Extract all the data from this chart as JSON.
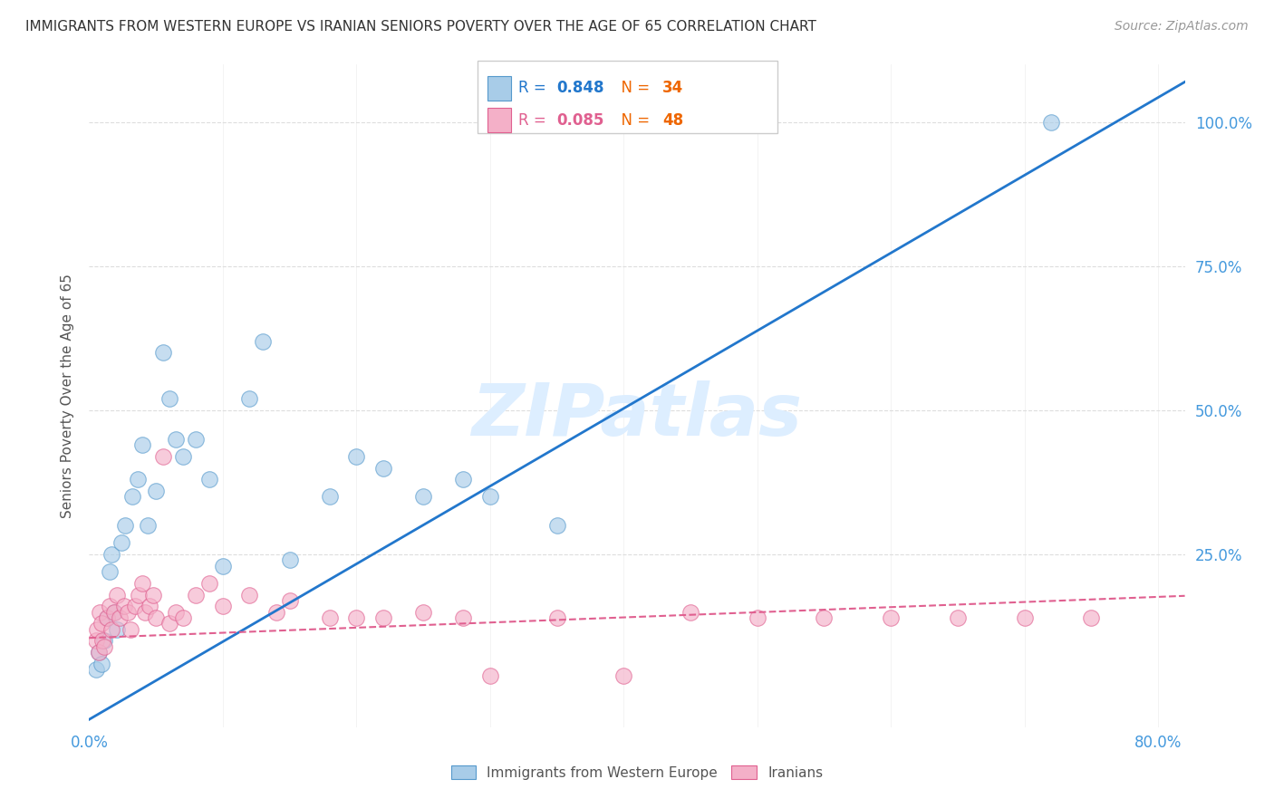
{
  "title": "IMMIGRANTS FROM WESTERN EUROPE VS IRANIAN SENIORS POVERTY OVER THE AGE OF 65 CORRELATION CHART",
  "source": "Source: ZipAtlas.com",
  "ylabel": "Seniors Poverty Over the Age of 65",
  "xlim": [
    0.0,
    0.82
  ],
  "ylim": [
    -0.05,
    1.1
  ],
  "yticks": [
    0.0,
    0.25,
    0.5,
    0.75,
    1.0
  ],
  "right_ytick_labels": [
    "100.0%",
    "75.0%",
    "50.0%",
    "25.0%",
    ""
  ],
  "xtick_vals": [
    0.0,
    0.1,
    0.2,
    0.3,
    0.4,
    0.5,
    0.6,
    0.7,
    0.8
  ],
  "xtick_labels": [
    "0.0%",
    "",
    "",
    "",
    "",
    "",
    "",
    "",
    "80.0%"
  ],
  "blue_R": "0.848",
  "blue_N": "34",
  "pink_R": "0.085",
  "pink_N": "48",
  "blue_scatter_x": [
    0.005,
    0.007,
    0.009,
    0.011,
    0.013,
    0.015,
    0.017,
    0.019,
    0.021,
    0.024,
    0.027,
    0.032,
    0.036,
    0.04,
    0.044,
    0.05,
    0.055,
    0.06,
    0.065,
    0.07,
    0.08,
    0.09,
    0.1,
    0.12,
    0.13,
    0.15,
    0.18,
    0.2,
    0.22,
    0.25,
    0.28,
    0.3,
    0.35,
    0.72
  ],
  "blue_scatter_y": [
    0.05,
    0.08,
    0.06,
    0.1,
    0.14,
    0.22,
    0.25,
    0.15,
    0.12,
    0.27,
    0.3,
    0.35,
    0.38,
    0.44,
    0.3,
    0.36,
    0.6,
    0.52,
    0.45,
    0.42,
    0.45,
    0.38,
    0.23,
    0.52,
    0.62,
    0.24,
    0.35,
    0.42,
    0.4,
    0.35,
    0.38,
    0.35,
    0.3,
    1.0
  ],
  "pink_scatter_x": [
    0.005,
    0.006,
    0.007,
    0.008,
    0.009,
    0.01,
    0.011,
    0.013,
    0.015,
    0.017,
    0.019,
    0.021,
    0.023,
    0.026,
    0.029,
    0.031,
    0.034,
    0.037,
    0.04,
    0.042,
    0.045,
    0.048,
    0.05,
    0.055,
    0.06,
    0.065,
    0.07,
    0.08,
    0.09,
    0.1,
    0.12,
    0.14,
    0.15,
    0.18,
    0.2,
    0.22,
    0.25,
    0.28,
    0.3,
    0.35,
    0.4,
    0.45,
    0.5,
    0.55,
    0.6,
    0.65,
    0.7,
    0.75
  ],
  "pink_scatter_y": [
    0.1,
    0.12,
    0.08,
    0.15,
    0.13,
    0.1,
    0.09,
    0.14,
    0.16,
    0.12,
    0.15,
    0.18,
    0.14,
    0.16,
    0.15,
    0.12,
    0.16,
    0.18,
    0.2,
    0.15,
    0.16,
    0.18,
    0.14,
    0.42,
    0.13,
    0.15,
    0.14,
    0.18,
    0.2,
    0.16,
    0.18,
    0.15,
    0.17,
    0.14,
    0.14,
    0.14,
    0.15,
    0.14,
    0.04,
    0.14,
    0.04,
    0.15,
    0.14,
    0.14,
    0.14,
    0.14,
    0.14,
    0.14
  ],
  "blue_line_x": [
    -0.01,
    0.82
  ],
  "blue_line_y": [
    -0.05,
    1.07
  ],
  "pink_line_x": [
    0.0,
    0.82
  ],
  "pink_line_y": [
    0.105,
    0.178
  ],
  "blue_dot_color": "#a8cce8",
  "blue_edge_color": "#5599cc",
  "pink_dot_color": "#f4b0c8",
  "pink_edge_color": "#e06090",
  "blue_line_color": "#2277cc",
  "pink_line_color": "#e06090",
  "watermark_color": "#ddeeff",
  "grid_color": "#dddddd",
  "bg_color": "#ffffff",
  "right_axis_color": "#4499dd",
  "bottom_axis_color": "#4499dd",
  "title_color": "#333333",
  "source_color": "#999999",
  "ylabel_color": "#555555",
  "legend_label_blue": "Immigrants from Western Europe",
  "legend_label_pink": "Iranians",
  "legend_R_blue": "#2277cc",
  "legend_N_color": "#ee6600",
  "legend_R_pink": "#e06090"
}
